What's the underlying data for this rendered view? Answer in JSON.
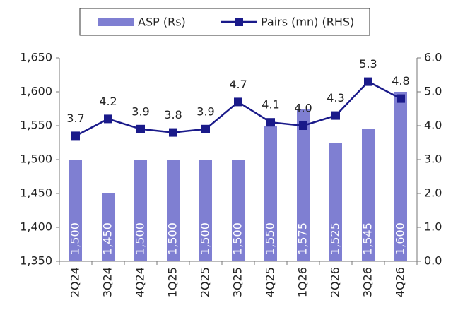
{
  "chart_data": {
    "type": "bar",
    "categories": [
      "2Q24",
      "3Q24",
      "4Q24",
      "1Q25",
      "2Q25",
      "3Q25",
      "4Q25",
      "1Q26",
      "2Q26",
      "3Q26",
      "4Q26"
    ],
    "series": [
      {
        "name": "ASP (Rs)",
        "type": "bar",
        "color": "#7f7fd2",
        "values": [
          1500,
          1450,
          1500,
          1500,
          1500,
          1500,
          1550,
          1575,
          1525,
          1545,
          1600
        ],
        "value_labels": [
          "1,500",
          "1,450",
          "1,500",
          "1,500",
          "1,500",
          "1,500",
          "1,550",
          "1,575",
          "1,525",
          "1,545",
          "1,600"
        ]
      },
      {
        "name": "Pairs (mn) (RHS)",
        "type": "line",
        "axis": "y2",
        "color": "#1a1a8a",
        "values": [
          3.7,
          4.2,
          3.9,
          3.8,
          3.9,
          4.7,
          4.1,
          4.0,
          4.3,
          5.3,
          4.8
        ],
        "value_labels": [
          "3.7",
          "4.2",
          "3.9",
          "3.8",
          "3.9",
          "4.7",
          "4.1",
          "4.0",
          "4.3",
          "5.3",
          "4.8"
        ]
      }
    ],
    "ylim": [
      1350,
      1650
    ],
    "yticks": [
      {
        "value": 1350,
        "label": "1,350"
      },
      {
        "value": 1400,
        "label": "1,400"
      },
      {
        "value": 1450,
        "label": "1,450"
      },
      {
        "value": 1500,
        "label": "1,500"
      },
      {
        "value": 1550,
        "label": "1,550"
      },
      {
        "value": 1600,
        "label": "1,600"
      },
      {
        "value": 1650,
        "label": "1,650"
      }
    ],
    "y2lim": [
      0,
      6
    ],
    "y2ticks": [
      {
        "value": 0,
        "label": "0.0"
      },
      {
        "value": 1,
        "label": "1.0"
      },
      {
        "value": 2,
        "label": "2.0"
      },
      {
        "value": 3,
        "label": "3.0"
      },
      {
        "value": 4,
        "label": "4.0"
      },
      {
        "value": 5,
        "label": "5.0"
      },
      {
        "value": 6,
        "label": "6.0"
      }
    ],
    "grid": false,
    "legend": "top"
  }
}
